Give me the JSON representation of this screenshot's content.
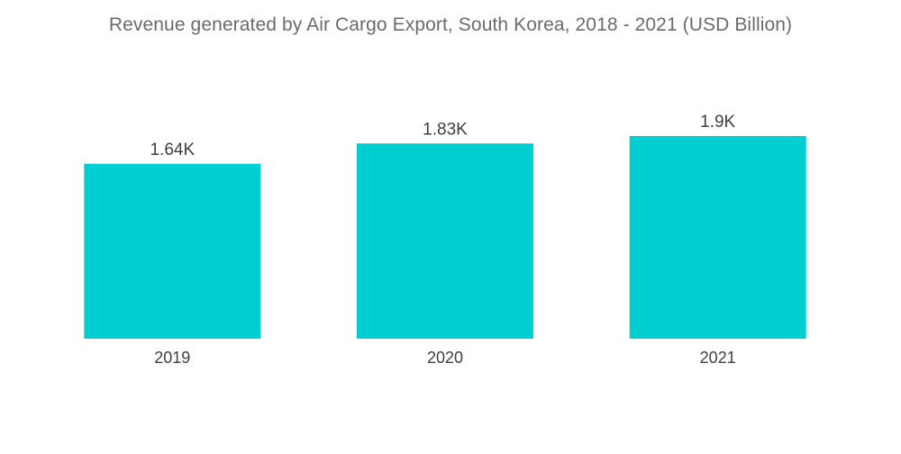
{
  "chart_data": {
    "type": "bar",
    "title": "Revenue generated by Air Cargo Export, South Korea, 2018 - 2021 (USD Billion)",
    "categories": [
      "2019",
      "2020",
      "2021"
    ],
    "values": [
      1640,
      1830,
      1900
    ],
    "value_labels": [
      "1.64K",
      "1.83K",
      "1.9K"
    ],
    "xlabel": "",
    "ylabel": "",
    "ylim": [
      0,
      2200
    ],
    "grid": false,
    "legend": "none",
    "bar_color": "#00ced1"
  }
}
